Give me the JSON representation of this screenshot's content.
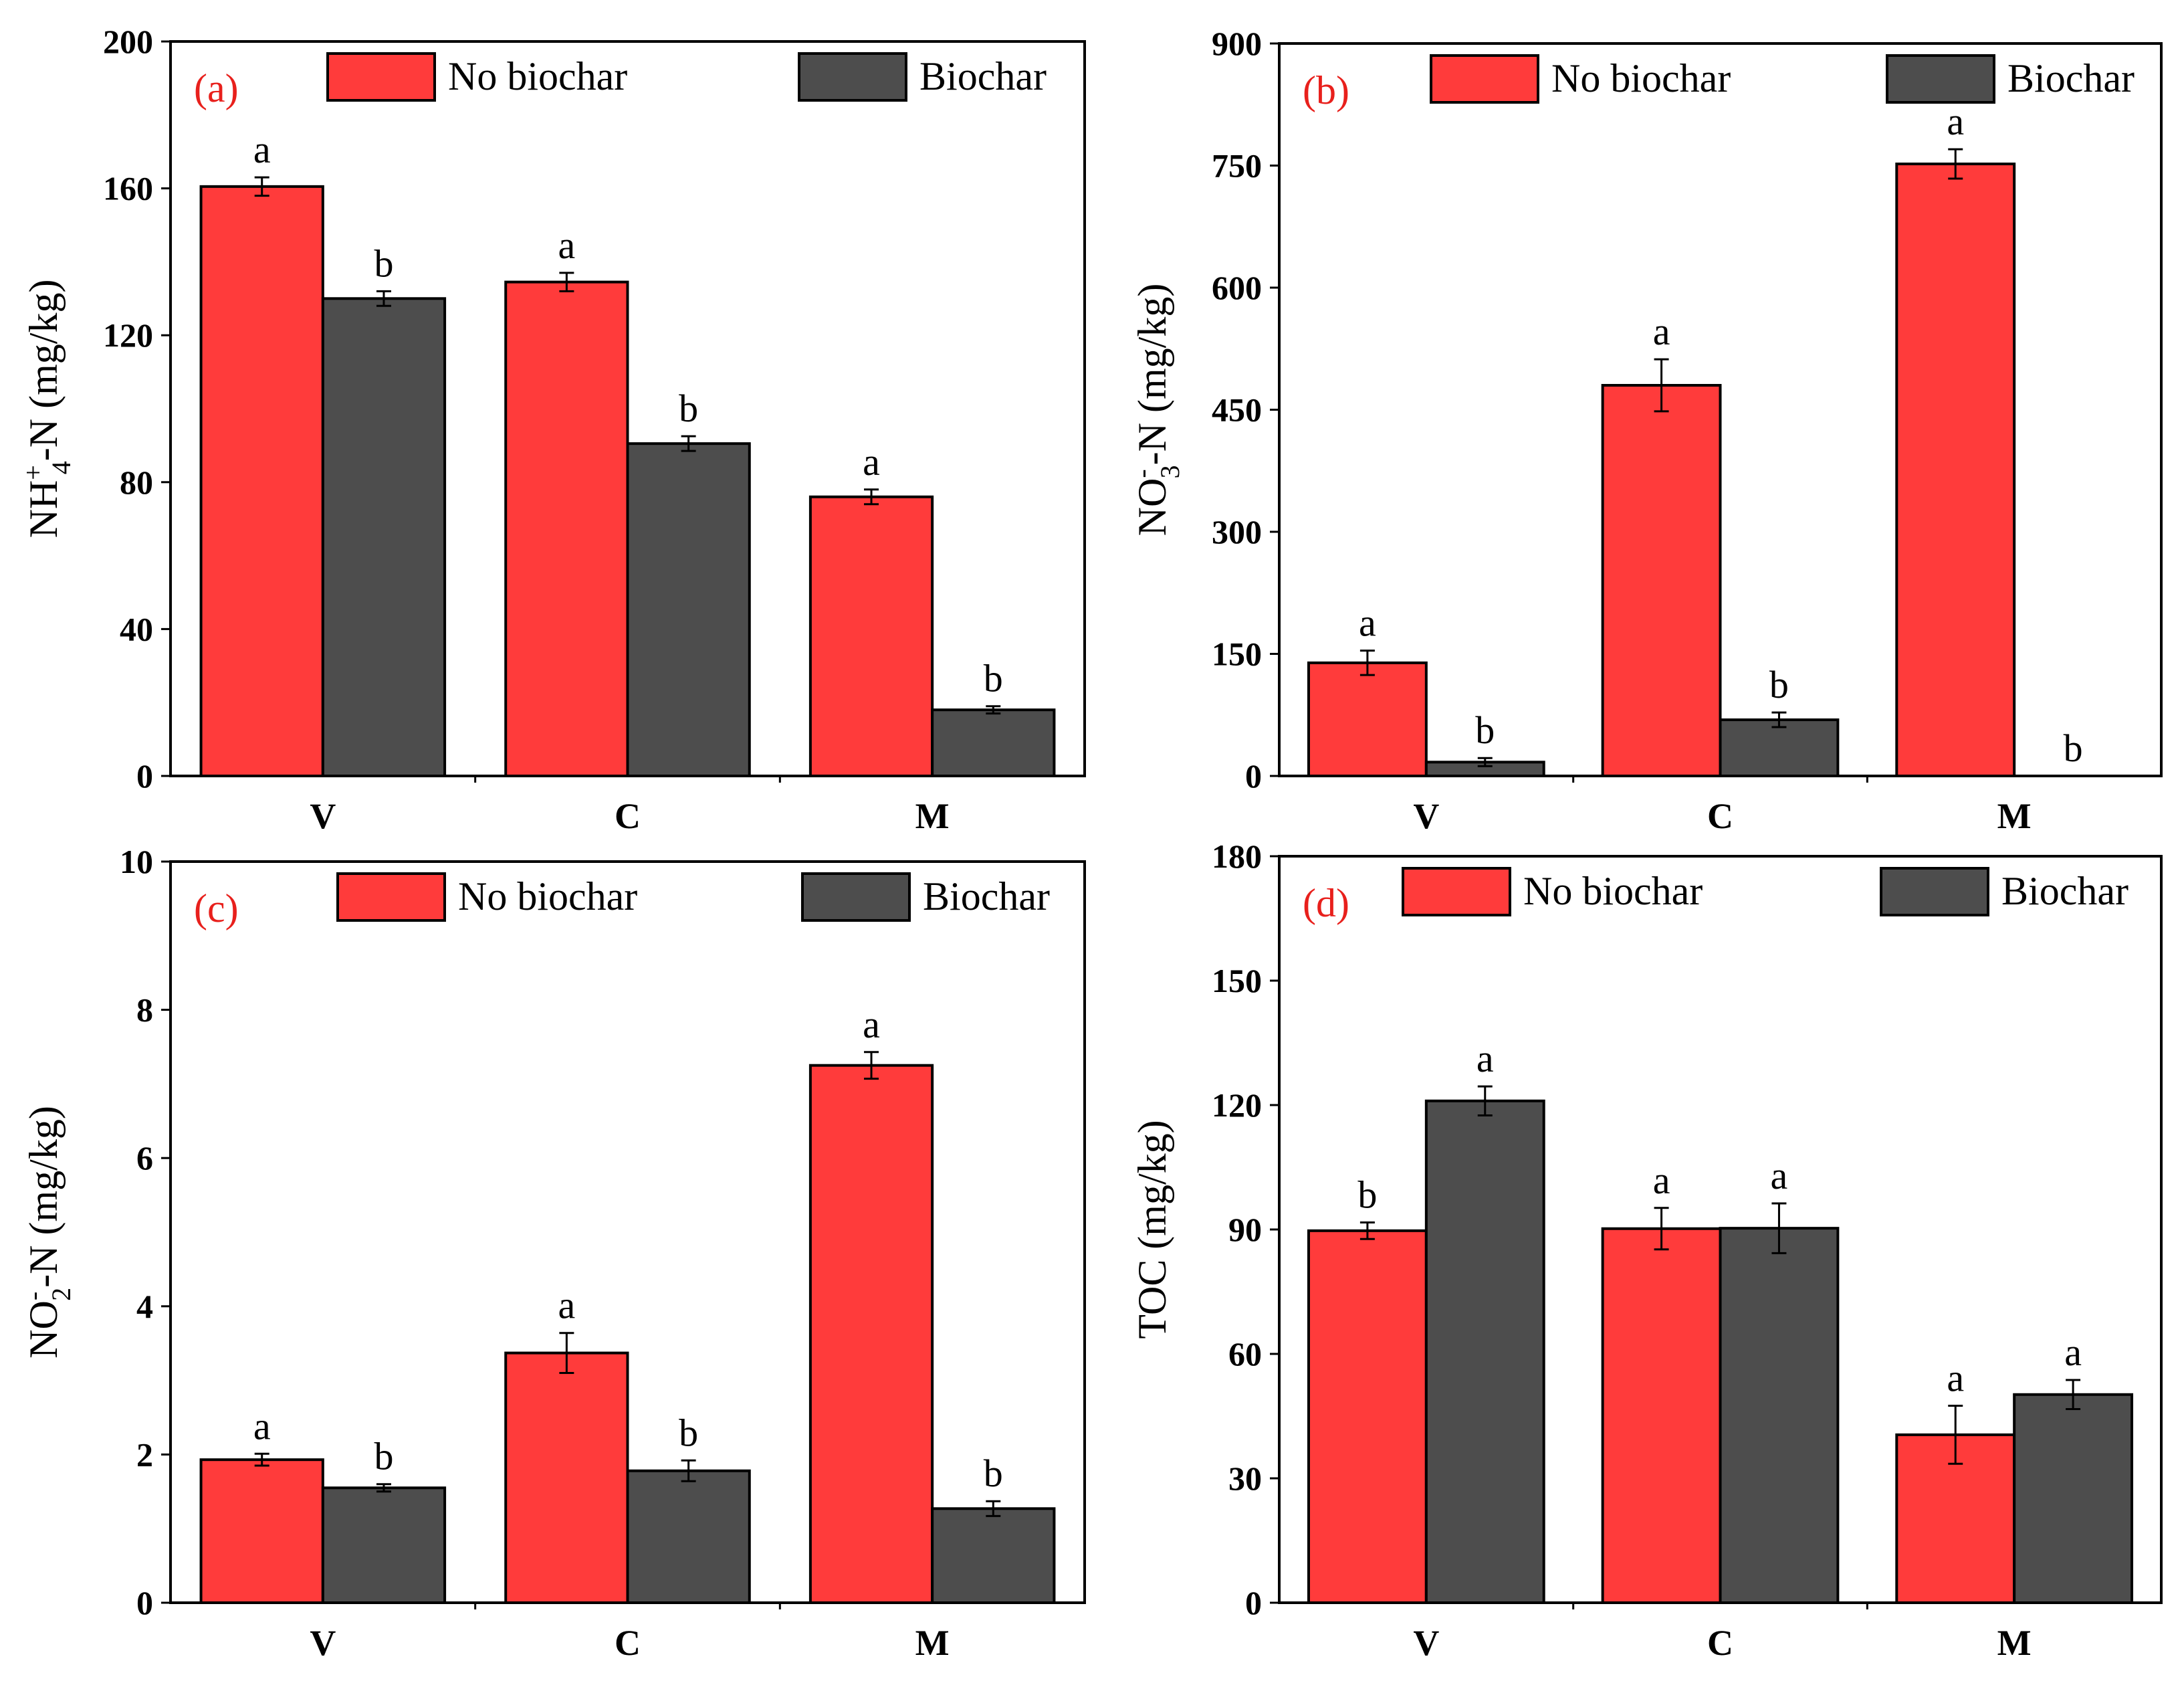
{
  "colors": {
    "no_biochar": "#ff3b3b",
    "biochar": "#4d4d4d",
    "panel_label": "#e8201c",
    "axis": "#000000"
  },
  "chart_data": [
    {
      "panel": "(a)",
      "type": "bar",
      "categories": [
        "V",
        "C",
        "M"
      ],
      "ylabel_main": "NH",
      "ylabel_sup": "+",
      "ylabel_sub": "4",
      "ylabel_tail": "-N (mg/kg)",
      "ylim": [
        0,
        200
      ],
      "yticks": [
        "0",
        "40",
        "80",
        "120",
        "160",
        "200"
      ],
      "series": [
        {
          "name": "No biochar",
          "values": [
            160.5,
            134.5,
            76.0
          ],
          "errors": [
            2.5,
            2.5,
            2.0
          ],
          "letters": [
            "a",
            "a",
            "a"
          ]
        },
        {
          "name": "Biochar",
          "values": [
            130.0,
            90.5,
            18.0
          ],
          "errors": [
            2.0,
            2.0,
            1.0
          ],
          "letters": [
            "b",
            "b",
            "b"
          ]
        }
      ],
      "legend": "top"
    },
    {
      "panel": "(b)",
      "type": "bar",
      "categories": [
        "V",
        "C",
        "M"
      ],
      "ylabel_main": "NO",
      "ylabel_sup": "-",
      "ylabel_sub": "3",
      "ylabel_tail": "-N (mg/kg)",
      "ylim": [
        0,
        900
      ],
      "yticks": [
        "0",
        "150",
        "300",
        "450",
        "600",
        "750",
        "900"
      ],
      "series": [
        {
          "name": "No biochar",
          "values": [
            139,
            480,
            752
          ],
          "errors": [
            15,
            32,
            18
          ],
          "letters": [
            "a",
            "a",
            "a"
          ]
        },
        {
          "name": "Biochar",
          "values": [
            17,
            69,
            0
          ],
          "errors": [
            5,
            9,
            0
          ],
          "letters": [
            "b",
            "b",
            "b"
          ]
        }
      ],
      "legend": "top"
    },
    {
      "panel": "(c)",
      "type": "bar",
      "categories": [
        "V",
        "C",
        "M"
      ],
      "ylabel_main": "NO",
      "ylabel_sup": "-",
      "ylabel_sub": "2",
      "ylabel_tail": "-N (mg/kg)",
      "ylim": [
        0,
        10
      ],
      "yticks": [
        "0",
        "2",
        "4",
        "6",
        "8",
        "10"
      ],
      "series": [
        {
          "name": "No biochar",
          "values": [
            1.93,
            3.37,
            7.25
          ],
          "errors": [
            0.08,
            0.27,
            0.18
          ],
          "letters": [
            "a",
            "a",
            "a"
          ]
        },
        {
          "name": "Biochar",
          "values": [
            1.55,
            1.78,
            1.27
          ],
          "errors": [
            0.05,
            0.14,
            0.1
          ],
          "letters": [
            "b",
            "b",
            "b"
          ]
        }
      ],
      "legend": "top"
    },
    {
      "panel": "(d)",
      "type": "bar",
      "categories": [
        "V",
        "C",
        "M"
      ],
      "ylabel_main": "TOC (mg/kg)",
      "ylabel_sup": "",
      "ylabel_sub": "",
      "ylabel_tail": "",
      "ylim": [
        0,
        180
      ],
      "yticks": [
        "0",
        "30",
        "60",
        "90",
        "120",
        "150",
        "180"
      ],
      "series": [
        {
          "name": "No biochar",
          "values": [
            89.7,
            90.2,
            40.5
          ],
          "errors": [
            2.0,
            5.0,
            7.0
          ],
          "letters": [
            "b",
            "a",
            "a"
          ]
        },
        {
          "name": "Biochar",
          "values": [
            121.0,
            90.3,
            50.2
          ],
          "errors": [
            3.5,
            6.0,
            3.5
          ],
          "letters": [
            "a",
            "a",
            "a"
          ]
        }
      ],
      "legend": "top"
    }
  ]
}
